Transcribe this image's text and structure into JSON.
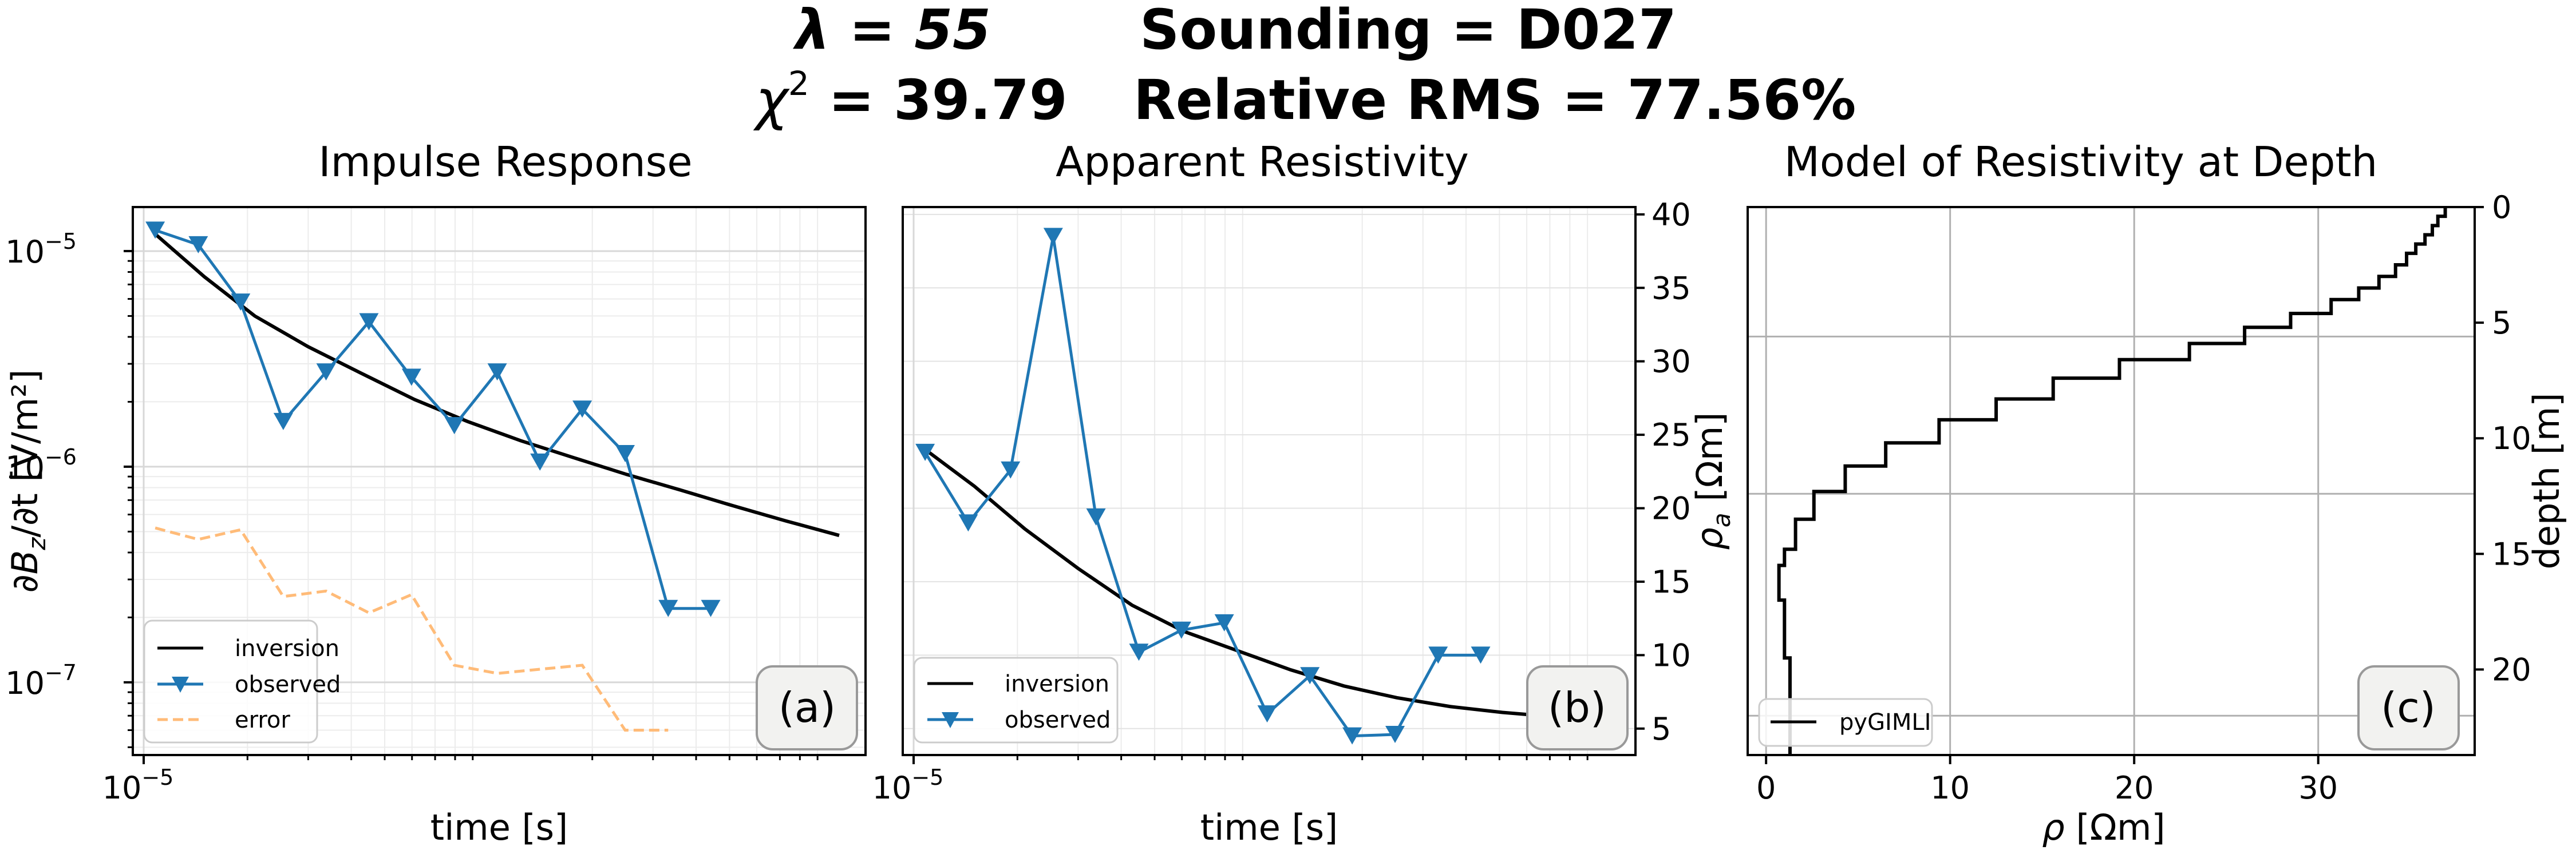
{
  "suptitle": {
    "line1_lambda": "λ = 55",
    "line1_sounding": "Sounding = D027",
    "line2_chi": "χ",
    "line2_chi_sup": "2",
    "line2_chi_value": " = 39.79",
    "line2_rms": "Relative RMS = 77.56%"
  },
  "colors": {
    "inversion": "#000000",
    "observed": "#1f77b4",
    "error": "#ffbb78"
  },
  "chart_data": [
    {
      "type": "line",
      "panel": "(a)",
      "title": "Impulse Response",
      "xlabel": "time [s]",
      "ylabel_parts": [
        "∂B",
        "z",
        "/∂t [V/m²]"
      ],
      "x_scale": "log",
      "y_scale": "log",
      "xlim": [
        9.3e-06,
        0.00124
      ],
      "ylim": [
        4.6e-08,
        1.6e-05
      ],
      "y_ticks": [
        1e-07,
        1e-06,
        1e-05
      ],
      "y_tick_labels": [
        "10",
        "10",
        "10"
      ],
      "y_tick_exps": [
        "−7",
        "−6",
        "−5"
      ],
      "x_ticks": [
        1e-05
      ],
      "x_tick_labels": [
        "10"
      ],
      "x_tick_exps": [
        "−5"
      ],
      "grid": true,
      "legend_position": "lower-left",
      "series": [
        {
          "name": "inversion",
          "x": [
            1.08e-05,
            1.5e-05,
            2.1e-05,
            3e-05,
            4.3e-05,
            6.1e-05,
            8.7e-05,
            0.000124,
            0.000177,
            0.000252,
            0.00036,
            0.00051,
            0.00073,
            0.00104
          ],
          "y": [
            1.2e-05,
            7.6e-06,
            5e-06,
            3.6e-06,
            2.7e-06,
            2.05e-06,
            1.62e-06,
            1.32e-06,
            1.1e-06,
            9.2e-07,
            7.8e-07,
            6.6e-07,
            5.6e-07,
            4.8e-07
          ]
        },
        {
          "name": "observed",
          "x": [
            1.08e-05,
            1.44e-05,
            1.91e-05,
            2.54e-05,
            3.38e-05,
            4.5e-05,
            5.98e-05,
            7.96e-05,
            0.000106,
            0.000141,
            0.000187,
            0.000249,
            0.000332,
            0.000441
          ],
          "y": [
            1.25e-05,
            1.07e-05,
            5.8e-06,
            1.62e-06,
            2.75e-06,
            4.7e-06,
            2.6e-06,
            1.55e-06,
            2.75e-06,
            1.05e-06,
            1.85e-06,
            1.15e-06,
            2.2e-07,
            2.2e-07
          ]
        },
        {
          "name": "error",
          "x": [
            1.08e-05,
            1.44e-05,
            1.91e-05,
            2.54e-05,
            3.38e-05,
            4.5e-05,
            5.98e-05,
            7.96e-05,
            0.000106,
            0.000141,
            0.000187,
            0.000249,
            0.000332
          ],
          "y": [
            5.2e-07,
            4.6e-07,
            5.1e-07,
            2.5e-07,
            2.65e-07,
            2.1e-07,
            2.55e-07,
            1.2e-07,
            1.1e-07,
            1.15e-07,
            1.2e-07,
            6e-08,
            6e-08
          ]
        }
      ]
    },
    {
      "type": "line",
      "panel": "(b)",
      "title": "Apparent Resistivity",
      "xlabel": "time [s]",
      "ylabel_parts": [
        "ρ",
        "a",
        " [Ωm]"
      ],
      "x_scale": "log",
      "y_scale": "linear",
      "xlim": [
        9.3e-06,
        0.00124
      ],
      "ylim": [
        3.2,
        40.5
      ],
      "y_ticks": [
        5,
        10,
        15,
        20,
        25,
        30,
        35,
        40
      ],
      "x_ticks": [
        1e-05
      ],
      "x_tick_labels": [
        "10"
      ],
      "x_tick_exps": [
        "−5"
      ],
      "grid": true,
      "legend_position": "lower-left",
      "series": [
        {
          "name": "inversion",
          "x": [
            1.08e-05,
            1.5e-05,
            2.1e-05,
            3e-05,
            4.3e-05,
            6.1e-05,
            8.7e-05,
            0.000124,
            0.000177,
            0.000252,
            0.00036,
            0.00051,
            0.00073,
            0.00104
          ],
          "y": [
            24.0,
            21.5,
            18.6,
            15.9,
            13.4,
            11.6,
            10.3,
            9.0,
            7.9,
            7.1,
            6.5,
            6.1,
            5.8,
            5.5
          ]
        },
        {
          "name": "observed",
          "x": [
            1.08e-05,
            1.44e-05,
            1.91e-05,
            2.54e-05,
            3.38e-05,
            4.5e-05,
            5.98e-05,
            7.96e-05,
            0.000106,
            0.000141,
            0.000187,
            0.000249,
            0.000332,
            0.000441
          ],
          "y": [
            23.8,
            19.0,
            22.6,
            38.5,
            19.4,
            10.2,
            11.7,
            12.2,
            6.0,
            8.6,
            4.5,
            4.6,
            10.0,
            10.0
          ]
        }
      ]
    },
    {
      "type": "line",
      "panel": "(c)",
      "title": "Model of Resistivity at Depth",
      "xlabel_parts": [
        "ρ",
        " [Ωm]"
      ],
      "ylabel": "depth [m]",
      "x_scale": "linear",
      "y_scale": "linear",
      "y_inverted": true,
      "xlim": [
        -1.0,
        38.5
      ],
      "ylim": [
        23.7,
        0
      ],
      "x_ticks": [
        0,
        10,
        20,
        30
      ],
      "y_ticks": [
        0,
        5,
        10,
        15,
        20
      ],
      "extra_hlines": [
        5.6,
        12.4,
        22.0
      ],
      "grid": true,
      "legend_position": "lower-left",
      "series": [
        {
          "name": "pyGIMLI",
          "step_layers": [
            {
              "rho": 36.9,
              "top": 0.0,
              "bottom": 0.4
            },
            {
              "rho": 36.5,
              "top": 0.4,
              "bottom": 0.8
            },
            {
              "rho": 36.2,
              "top": 0.8,
              "bottom": 1.2
            },
            {
              "rho": 35.8,
              "top": 1.2,
              "bottom": 1.6
            },
            {
              "rho": 35.3,
              "top": 1.6,
              "bottom": 2.0
            },
            {
              "rho": 34.8,
              "top": 2.0,
              "bottom": 2.5
            },
            {
              "rho": 34.2,
              "top": 2.5,
              "bottom": 3.0
            },
            {
              "rho": 33.3,
              "top": 3.0,
              "bottom": 3.5
            },
            {
              "rho": 32.2,
              "top": 3.5,
              "bottom": 4.0
            },
            {
              "rho": 30.7,
              "top": 4.0,
              "bottom": 4.6
            },
            {
              "rho": 28.5,
              "top": 4.6,
              "bottom": 5.2
            },
            {
              "rho": 26.0,
              "top": 5.2,
              "bottom": 5.9
            },
            {
              "rho": 23.0,
              "top": 5.9,
              "bottom": 6.6
            },
            {
              "rho": 19.2,
              "top": 6.6,
              "bottom": 7.4
            },
            {
              "rho": 15.6,
              "top": 7.4,
              "bottom": 8.3
            },
            {
              "rho": 12.5,
              "top": 8.3,
              "bottom": 9.2
            },
            {
              "rho": 9.4,
              "top": 9.2,
              "bottom": 10.2
            },
            {
              "rho": 6.5,
              "top": 10.2,
              "bottom": 11.2
            },
            {
              "rho": 4.3,
              "top": 11.2,
              "bottom": 12.3
            },
            {
              "rho": 2.6,
              "top": 12.3,
              "bottom": 13.5
            },
            {
              "rho": 1.6,
              "top": 13.5,
              "bottom": 14.8
            },
            {
              "rho": 1.0,
              "top": 14.8,
              "bottom": 15.5
            },
            {
              "rho": 0.7,
              "top": 15.5,
              "bottom": 17.0
            },
            {
              "rho": 1.0,
              "top": 17.0,
              "bottom": 19.5
            },
            {
              "rho": 1.3,
              "top": 19.5,
              "bottom": 23.7
            }
          ]
        }
      ]
    }
  ]
}
